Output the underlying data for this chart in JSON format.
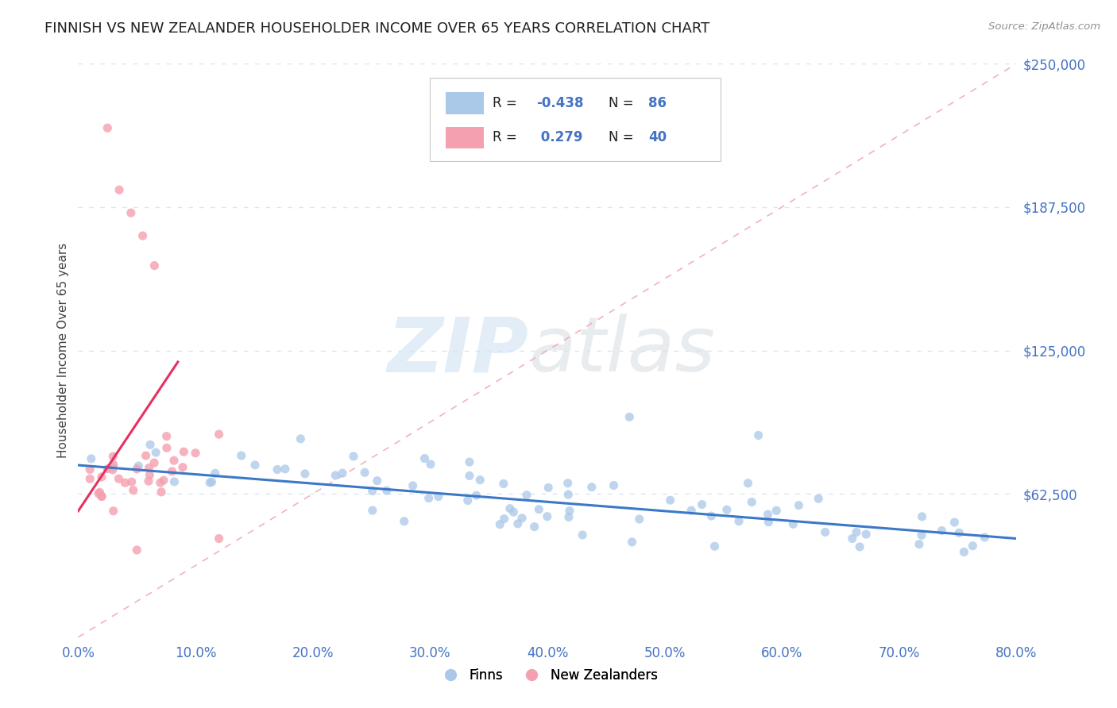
{
  "title": "FINNISH VS NEW ZEALANDER HOUSEHOLDER INCOME OVER 65 YEARS CORRELATION CHART",
  "source": "Source: ZipAtlas.com",
  "ylabel": "Householder Income Over 65 years",
  "xlim": [
    0.0,
    0.8
  ],
  "ylim": [
    0,
    250000
  ],
  "yticks": [
    0,
    62500,
    125000,
    187500,
    250000
  ],
  "ytick_labels": [
    "",
    "$62,500",
    "$125,000",
    "$187,500",
    "$250,000"
  ],
  "xtick_labels": [
    "0.0%",
    "10.0%",
    "20.0%",
    "30.0%",
    "40.0%",
    "50.0%",
    "60.0%",
    "70.0%",
    "80.0%"
  ],
  "xticks": [
    0.0,
    0.1,
    0.2,
    0.3,
    0.4,
    0.5,
    0.6,
    0.7,
    0.8
  ],
  "finn_color": "#aac8e8",
  "nz_color": "#f4a0b0",
  "finn_line_color": "#3c78c8",
  "nz_line_color": "#e83060",
  "diag_color": "#f0a0a8",
  "legend_finn_R": "-0.438",
  "legend_finn_N": "86",
  "legend_nz_R": "0.279",
  "legend_nz_N": "40",
  "r_color": "#4472c4",
  "n_color": "#4472c4",
  "grid_color": "#d8e4f0",
  "background_color": "#ffffff",
  "title_color": "#202020",
  "axis_label_color": "#404040",
  "tick_label_color": "#4472c4",
  "watermark_zip_color": "#b8d4ec",
  "watermark_atlas_color": "#c8d0d8"
}
